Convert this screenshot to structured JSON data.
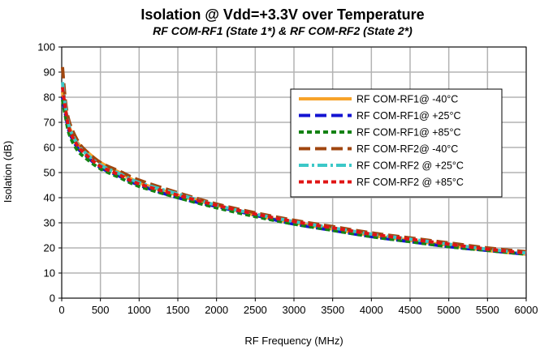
{
  "chart_data": {
    "type": "line",
    "title": "Isolation @ Vdd=+3.3V over Temperature",
    "subtitle": "RF COM-RF1 (State 1*) & RF COM-RF2 (State 2*)",
    "xlabel": "RF Frequency (MHz)",
    "ylabel": "Isolation (dB)",
    "xlim": [
      0,
      6000
    ],
    "ylim": [
      0,
      100
    ],
    "x_ticks": [
      "0",
      "500",
      "1000",
      "1500",
      "2000",
      "2500",
      "3000",
      "3500",
      "4000",
      "4500",
      "5000",
      "5500",
      "6000"
    ],
    "y_ticks": [
      "0",
      "10",
      "20",
      "30",
      "40",
      "50",
      "60",
      "70",
      "80",
      "90",
      "100"
    ],
    "grid": true,
    "legend_position": "top-right",
    "x": [
      10,
      50,
      100,
      200,
      300,
      500,
      750,
      1000,
      1500,
      2000,
      2500,
      3000,
      3500,
      4000,
      4500,
      5000,
      5500,
      6000
    ],
    "series": [
      {
        "name": "RF COM-RF1@ -40°C",
        "color": "#F7A32A",
        "dash": "solid",
        "values": [
          82,
          75,
          68,
          62,
          59,
          54,
          50,
          46,
          41,
          37,
          33,
          30,
          27.5,
          25,
          23,
          21,
          19,
          17.5
        ]
      },
      {
        "name": "RF COM-RF1@ +25°C",
        "color": "#1414D2",
        "dash": "long-dash",
        "values": [
          80,
          73,
          66,
          60,
          57,
          52,
          48.5,
          45,
          40,
          36.5,
          33,
          29.5,
          27,
          24.5,
          22.5,
          20.5,
          19,
          17.5
        ]
      },
      {
        "name": "RF COM-RF1@ +85°C",
        "color": "#148214",
        "dash": "short-dash",
        "values": [
          79,
          72,
          65,
          59,
          56,
          51.5,
          48,
          44.5,
          40,
          36,
          32.5,
          29.5,
          27,
          24.5,
          22.5,
          20.5,
          19,
          17.5
        ]
      },
      {
        "name": "RF COM-RF2@ -40°C",
        "color": "#A0460F",
        "dash": "long-dash",
        "values": [
          92,
          78,
          70,
          63,
          59,
          54,
          50.5,
          47,
          42,
          37.5,
          34,
          31,
          28.5,
          26,
          24,
          22,
          20,
          18.5
        ]
      },
      {
        "name": "RF COM-RF2 @ +25°C",
        "color": "#3CC8C8",
        "dash": "dash-dot",
        "values": [
          86,
          76,
          68,
          61.5,
          58,
          53,
          49.5,
          46,
          41.5,
          37,
          33.5,
          30.5,
          28,
          25.5,
          23.5,
          21.5,
          19.5,
          18
        ]
      },
      {
        "name": "RF COM-RF2 @ +85°C",
        "color": "#E01414",
        "dash": "short-dash",
        "values": [
          84,
          75,
          67,
          61,
          57.5,
          52.5,
          49,
          45.5,
          41,
          37,
          33.5,
          30.5,
          28,
          25.5,
          23.5,
          21.5,
          19.5,
          18
        ]
      }
    ]
  }
}
